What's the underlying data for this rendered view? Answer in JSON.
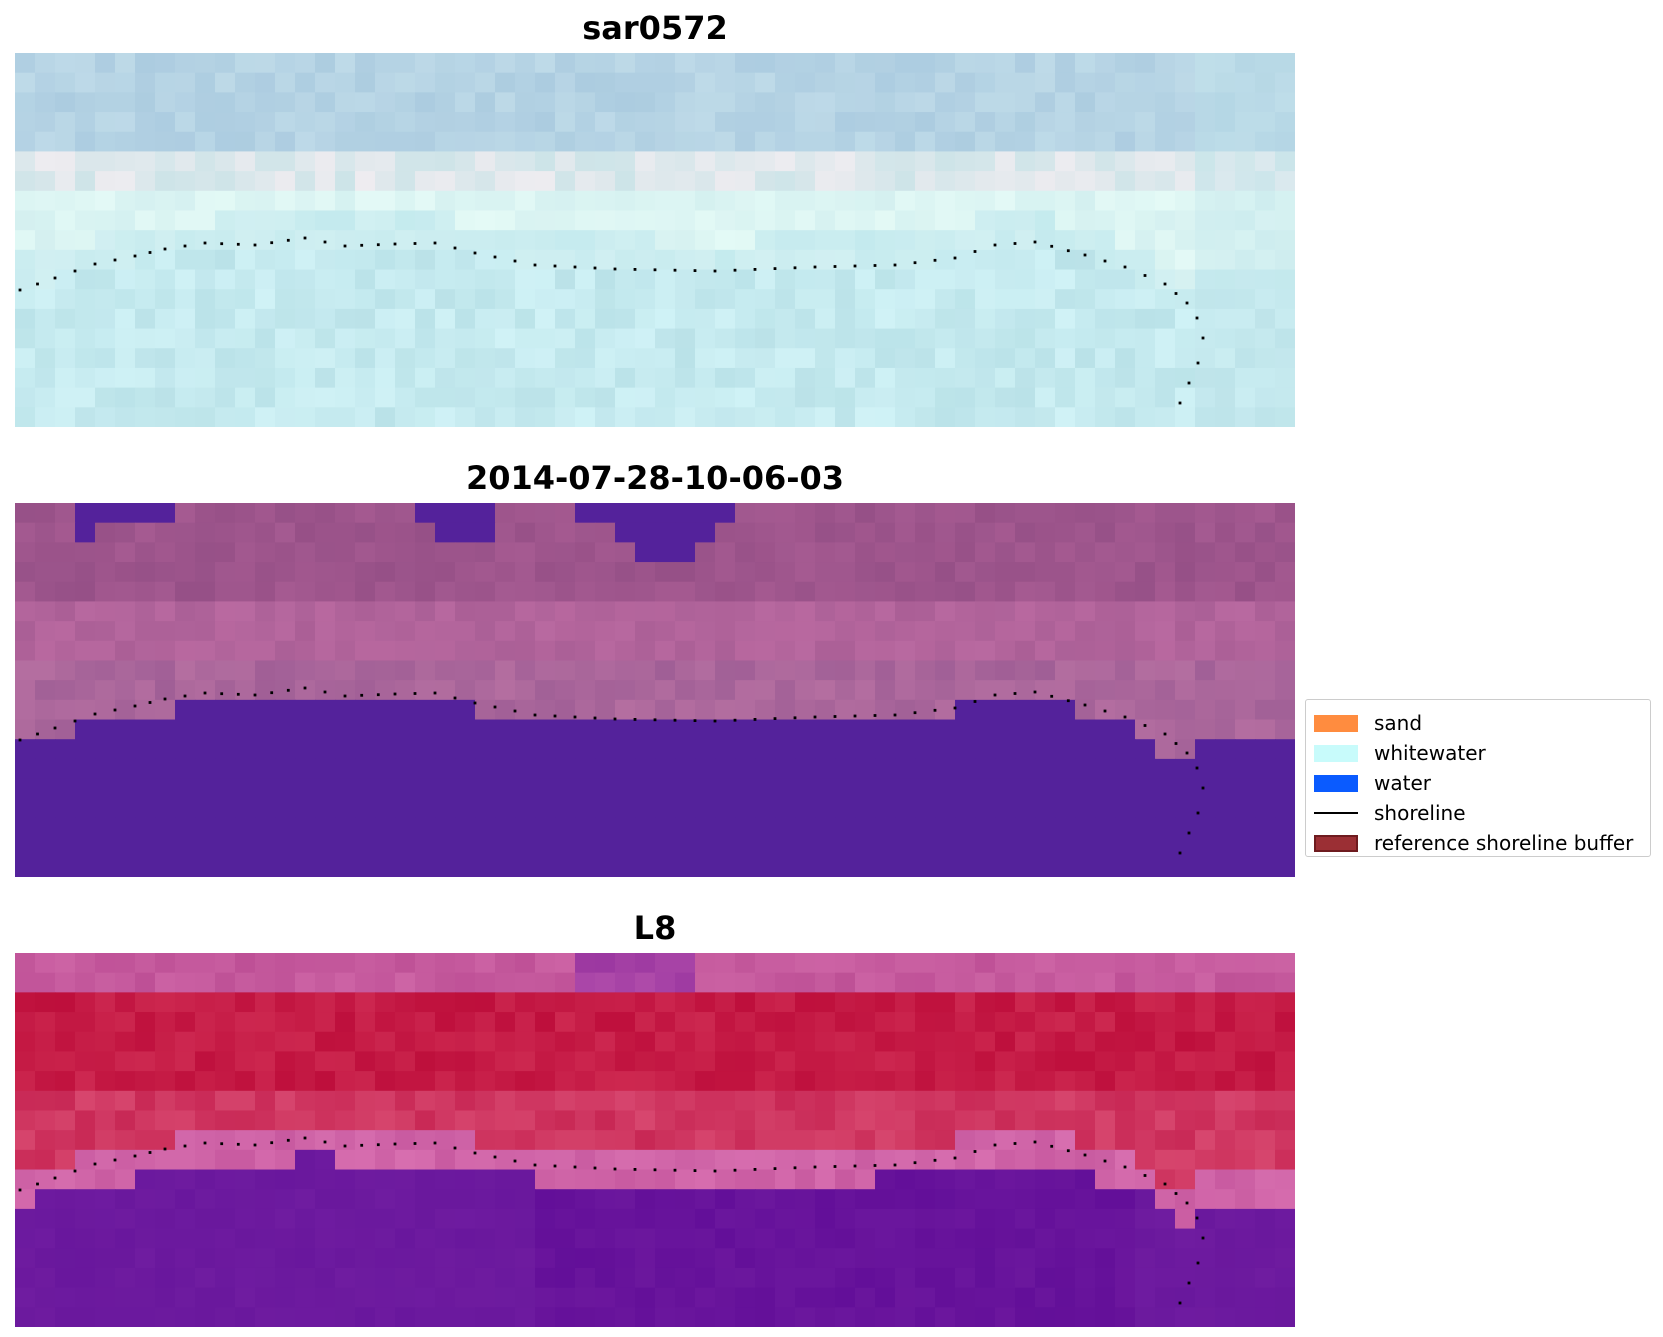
{
  "panels": [
    {
      "title": "sar0572",
      "style": "cyan-tint"
    },
    {
      "title": "2014-07-28-10-06-03",
      "style": "classified"
    },
    {
      "title": "L8",
      "style": "magenta-index"
    }
  ],
  "legend": {
    "items": [
      {
        "label": "sand",
        "kind": "patch",
        "color": "#ff8c3f"
      },
      {
        "label": "whitewater",
        "kind": "patch",
        "color": "#c8fbfb"
      },
      {
        "label": "water",
        "kind": "patch",
        "color": "#0a5bff"
      },
      {
        "label": "shoreline",
        "kind": "line",
        "color": "#000000"
      },
      {
        "label": "reference shoreline buffer",
        "kind": "patch",
        "color": "#9b2f34",
        "edge": "#6e1b1f"
      }
    ]
  },
  "colors": {
    "water_class": "#54229b",
    "shoreline_points": "#000000"
  }
}
